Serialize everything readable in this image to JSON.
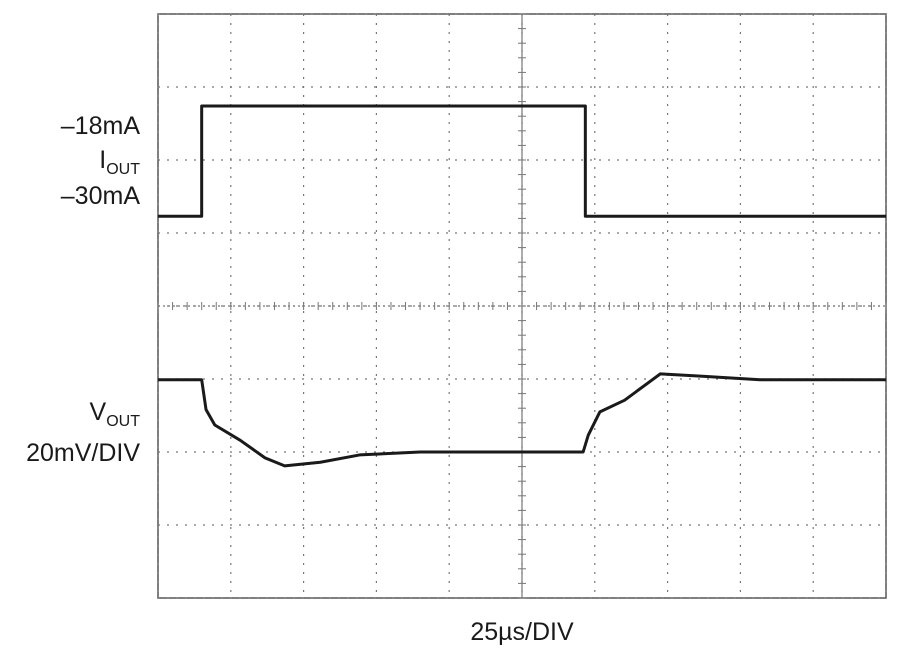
{
  "chart_data": {
    "type": "line",
    "xlabel": "25µs/DIV",
    "xlim": [
      0,
      10
    ],
    "ylim": [
      0,
      8
    ],
    "xticks": [
      0,
      1,
      2,
      3,
      4,
      5,
      6,
      7,
      8,
      9,
      10
    ],
    "yticks": [
      0,
      1,
      2,
      3,
      4,
      5,
      6,
      7,
      8
    ],
    "grid": true,
    "series": [
      {
        "name": "IOUT",
        "color": "#1a1a1a",
        "x": [
          0,
          0.6,
          0.6,
          5.87,
          5.87,
          10
        ],
        "values": [
          5.23,
          5.23,
          6.74,
          6.74,
          5.23,
          5.23
        ]
      },
      {
        "name": "VOUT",
        "color": "#1a1a1a",
        "x": [
          0,
          0.6,
          0.66,
          0.78,
          1.13,
          1.47,
          1.74,
          2.23,
          2.77,
          3.6,
          5.84,
          5.91,
          6.07,
          6.41,
          6.9,
          7.45,
          8.27,
          10
        ],
        "values": [
          2.99,
          2.99,
          2.58,
          2.37,
          2.16,
          1.92,
          1.81,
          1.86,
          1.96,
          2.0,
          2.0,
          2.23,
          2.55,
          2.71,
          3.07,
          3.04,
          2.99,
          2.99
        ]
      }
    ],
    "annotations": {
      "iout_high": "–18mA",
      "iout_name": "I",
      "iout_sub": "OUT",
      "iout_low": "–30mA",
      "vout_name": "V",
      "vout_sub": "OUT",
      "vout_scale": "20mV/DIV"
    }
  }
}
